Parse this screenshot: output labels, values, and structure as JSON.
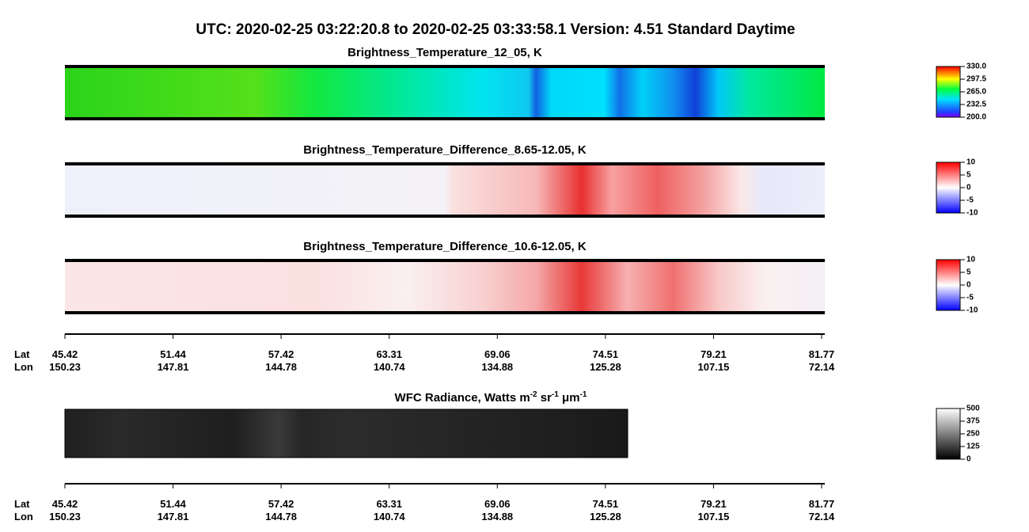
{
  "title": "UTC:  2020-02-25   03:22:20.8  to  2020-02-25   03:33:58.1    Version: 4.51  Standard Daytime",
  "panels": [
    {
      "title": "Brightness_Temperature_12_05, K",
      "colorbar": {
        "lim": [
          200,
          330
        ],
        "ticks": [
          {
            "value": 330,
            "label": "330.0"
          },
          297.5,
          {
            "value": 265,
            "label": "265.0"
          },
          232.5,
          {
            "value": 200,
            "label": "200.0"
          }
        ]
      }
    },
    {
      "title": "Brightness_Temperature_Difference_8.65-12.05, K",
      "colorbar": {
        "lim": [
          -10,
          10
        ],
        "ticks": [
          10,
          5,
          0,
          -5,
          -10
        ]
      }
    },
    {
      "title": "Brightness_Temperature_Difference_10.6-12.05, K",
      "colorbar": {
        "lim": [
          -10,
          10
        ],
        "ticks": [
          10,
          5,
          0,
          -5,
          -10
        ]
      }
    },
    {
      "title_parts": [
        "WFC Radiance, Watts m",
        "-2",
        " sr",
        "-1",
        " μm",
        "-1"
      ],
      "colorbar": {
        "lim": [
          0,
          500
        ],
        "ticks": [
          500,
          375,
          250,
          125,
          0
        ]
      }
    }
  ],
  "axes": [
    {
      "lat_label": "Lat",
      "lon_label": "Lon",
      "lat": [
        "45.42",
        "51.44",
        "57.42",
        "63.31",
        "69.06",
        "74.51",
        "79.21",
        "81.77"
      ],
      "lon": [
        "150.23",
        "147.81",
        "144.78",
        "140.74",
        "134.88",
        "125.28",
        "107.15",
        "72.14"
      ]
    },
    {
      "lat_label": "Lat",
      "lon_label": "Lon",
      "lat": [
        "45.42",
        "51.44",
        "57.42",
        "63.31",
        "69.06",
        "74.51",
        "79.21",
        "81.77"
      ],
      "lon": [
        "150.23",
        "147.81",
        "144.78",
        "140.74",
        "134.88",
        "125.28",
        "107.15",
        "72.14"
      ]
    }
  ]
}
